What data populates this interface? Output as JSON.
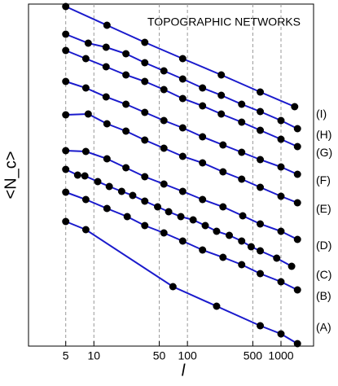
{
  "chart_data": {
    "type": "line",
    "title": "TOPOGRAPHIC  NETWORKS",
    "x_label": "l",
    "y_label": "<N_c>",
    "log_x": true,
    "xlim": [
      2,
      2230
    ],
    "xticks": [
      5,
      10,
      50,
      100,
      500,
      1000
    ],
    "ylim": [
      0,
      420
    ],
    "grid": "x-dashed",
    "line_color": "#1a1acc",
    "marker_color": "#000000",
    "series": [
      {
        "name": "(A)",
        "x": [
          5,
          8.2,
          70,
          205,
          600,
          1000,
          1500
        ],
        "values": [
          153,
          143,
          73,
          49,
          25,
          15,
          3
        ]
      },
      {
        "name": "(B)",
        "x": [
          5,
          8.2,
          13.8,
          22.7,
          35,
          56,
          89,
          145,
          240,
          380,
          600,
          1000,
          1500
        ],
        "values": [
          189,
          180,
          169,
          159,
          148,
          139,
          129,
          118,
          109,
          100,
          89,
          79,
          69
        ]
      },
      {
        "name": "(C)",
        "x": [
          5,
          6.7,
          8,
          11,
          14.6,
          19.8,
          26,
          35,
          48,
          63,
          85,
          115,
          155,
          205,
          280,
          380,
          480,
          600,
          900,
          1300
        ],
        "values": [
          217,
          210,
          209,
          202,
          196,
          190,
          185,
          178,
          171,
          165,
          159,
          155,
          148,
          141,
          136,
          129,
          122,
          117,
          108,
          98
        ]
      },
      {
        "name": "(D)",
        "x": [
          5,
          8.2,
          13.8,
          22,
          35,
          56,
          89,
          145,
          240,
          390,
          600,
          1000,
          1500
        ],
        "values": [
          240,
          239,
          230,
          219,
          208,
          199,
          190,
          180,
          171,
          160,
          150,
          141,
          131
        ]
      },
      {
        "name": "(E)",
        "x": [
          5,
          8.7,
          13.8,
          22,
          35,
          56,
          89,
          145,
          240,
          380,
          600,
          1000,
          1500
        ],
        "values": [
          284,
          285,
          273,
          264,
          253,
          243,
          233,
          225,
          214,
          205,
          195,
          184,
          176
        ]
      },
      {
        "name": "(F)",
        "x": [
          5,
          8.2,
          13.5,
          22,
          35,
          56,
          89,
          145,
          240,
          380,
          600,
          1000,
          1500
        ],
        "values": [
          325,
          317,
          306,
          297,
          287,
          277,
          268,
          257,
          247,
          238,
          229,
          220,
          211
        ]
      },
      {
        "name": "(G)",
        "x": [
          5,
          8.2,
          13.5,
          22,
          35,
          56,
          89,
          145,
          230,
          380,
          600,
          1000,
          1500
        ],
        "values": [
          363,
          353,
          343,
          333,
          325,
          315,
          304,
          295,
          285,
          275,
          265,
          254,
          245
        ]
      },
      {
        "name": "(H)",
        "x": [
          5,
          8.7,
          13.5,
          22,
          35,
          56,
          89,
          145,
          230,
          380,
          600,
          1000,
          1500
        ],
        "values": [
          383,
          372,
          367,
          359,
          348,
          338,
          328,
          317,
          308,
          297,
          288,
          277,
          267
        ]
      },
      {
        "name": "(I)",
        "x": [
          5,
          13.8,
          35,
          89,
          230,
          600,
          1400
        ],
        "values": [
          417,
          394,
          373,
          353,
          333,
          312,
          294
        ]
      }
    ]
  }
}
